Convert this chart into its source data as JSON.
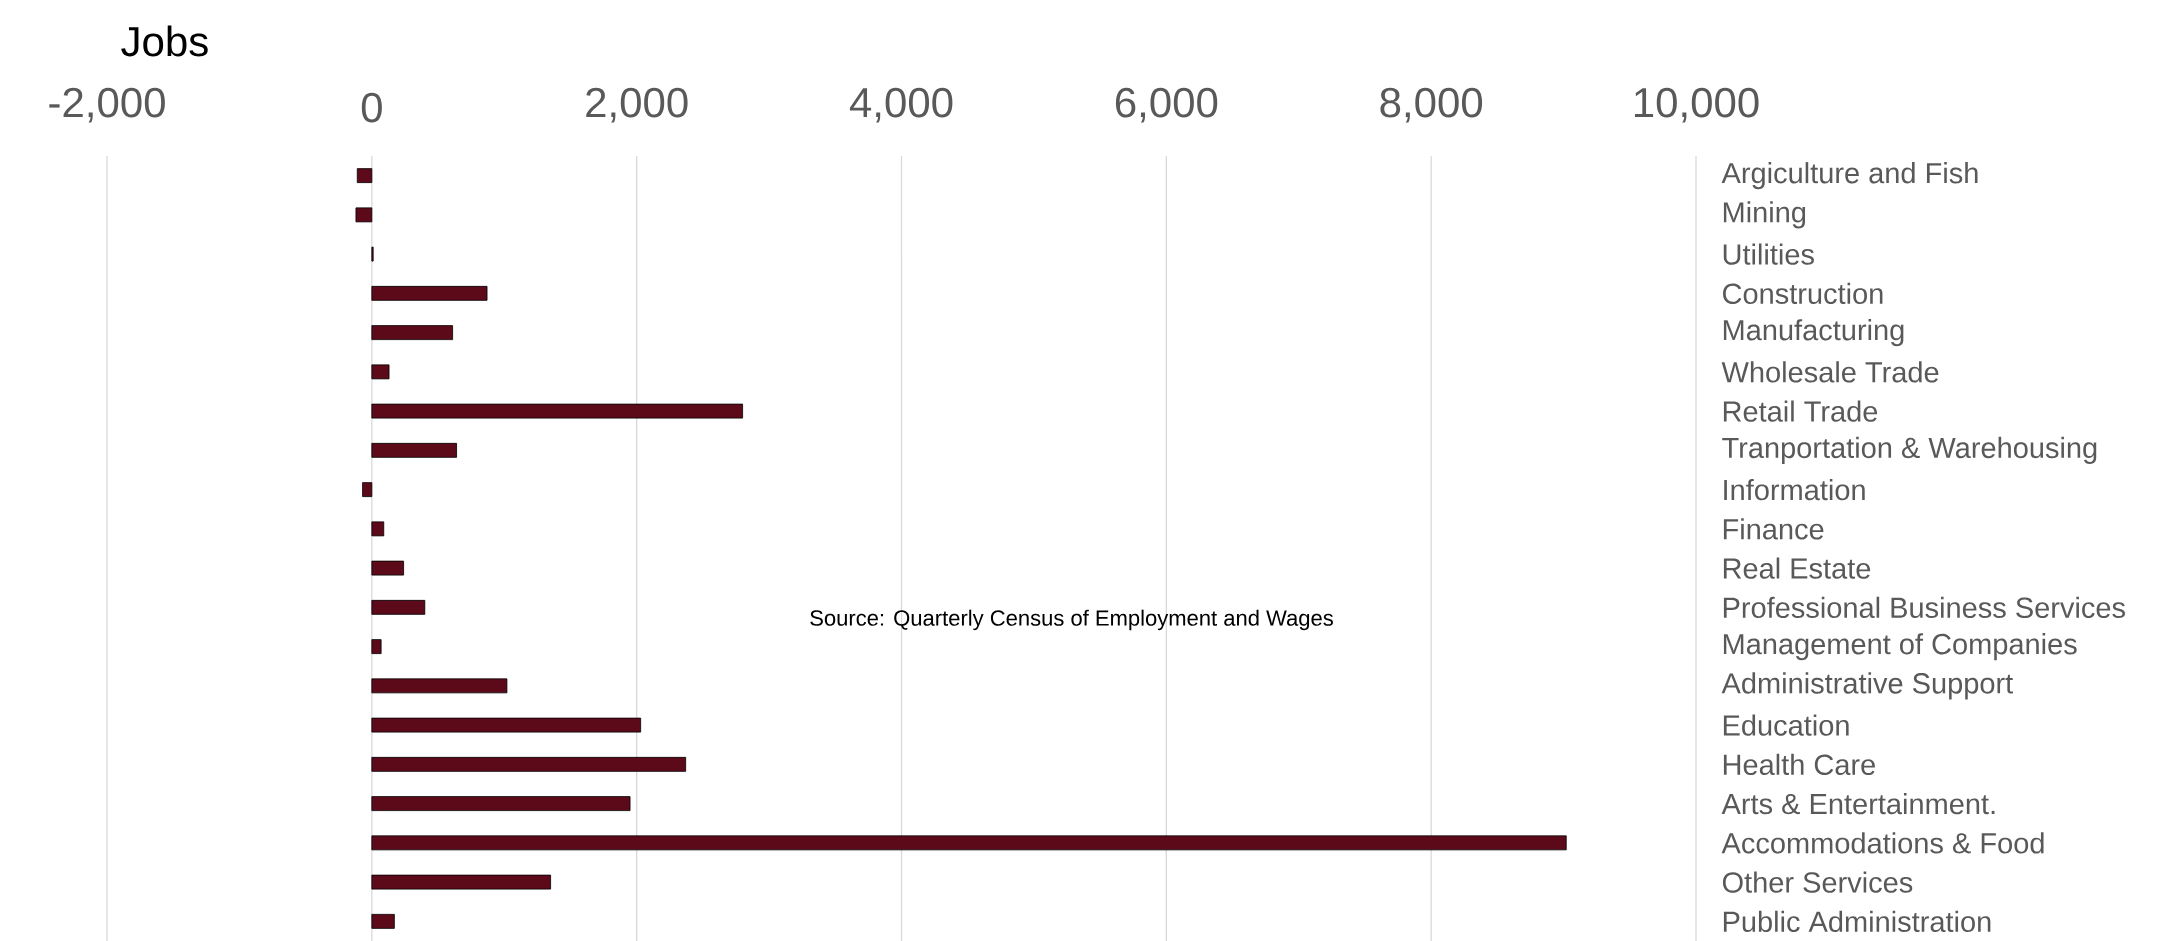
{
  "chart_data": {
    "type": "bar",
    "orientation": "horizontal",
    "xlabel": "Jobs",
    "categories": [
      "Argiculture and Fish",
      "Mining",
      "Utilities",
      "Construction",
      "Manufacturing",
      "Wholesale Trade",
      "Retail Trade",
      "Tranportation & Warehousing",
      "Information",
      "Finance",
      "Real Estate",
      "Professional Business Services",
      "Management of Companies",
      "Administrative Support",
      "Education",
      "Health Care",
      "Arts & Entertainment.",
      "Accommodations & Food",
      "Other Services",
      "Public Administration"
    ],
    "values": [
      -110,
      -120,
      10,
      870,
      610,
      130,
      2800,
      640,
      -70,
      90,
      240,
      400,
      70,
      1020,
      2030,
      2370,
      1950,
      9020,
      1350,
      170
    ],
    "color": "#5c0a1a",
    "xlim": [
      -2000,
      10000
    ],
    "xticks": [
      {
        "value": -2000,
        "label": "-2,000"
      },
      0,
      {
        "value": 2000,
        "label": "2,000"
      },
      {
        "value": 4000,
        "label": "4,000"
      },
      {
        "value": 6000,
        "label": "6,000"
      },
      {
        "value": 8000,
        "label": "8,000"
      },
      {
        "value": 10000,
        "label": "10,000"
      }
    ],
    "grid": "x",
    "annotations": [
      "Source:  Quarterly Census of Employment and Wages"
    ]
  }
}
